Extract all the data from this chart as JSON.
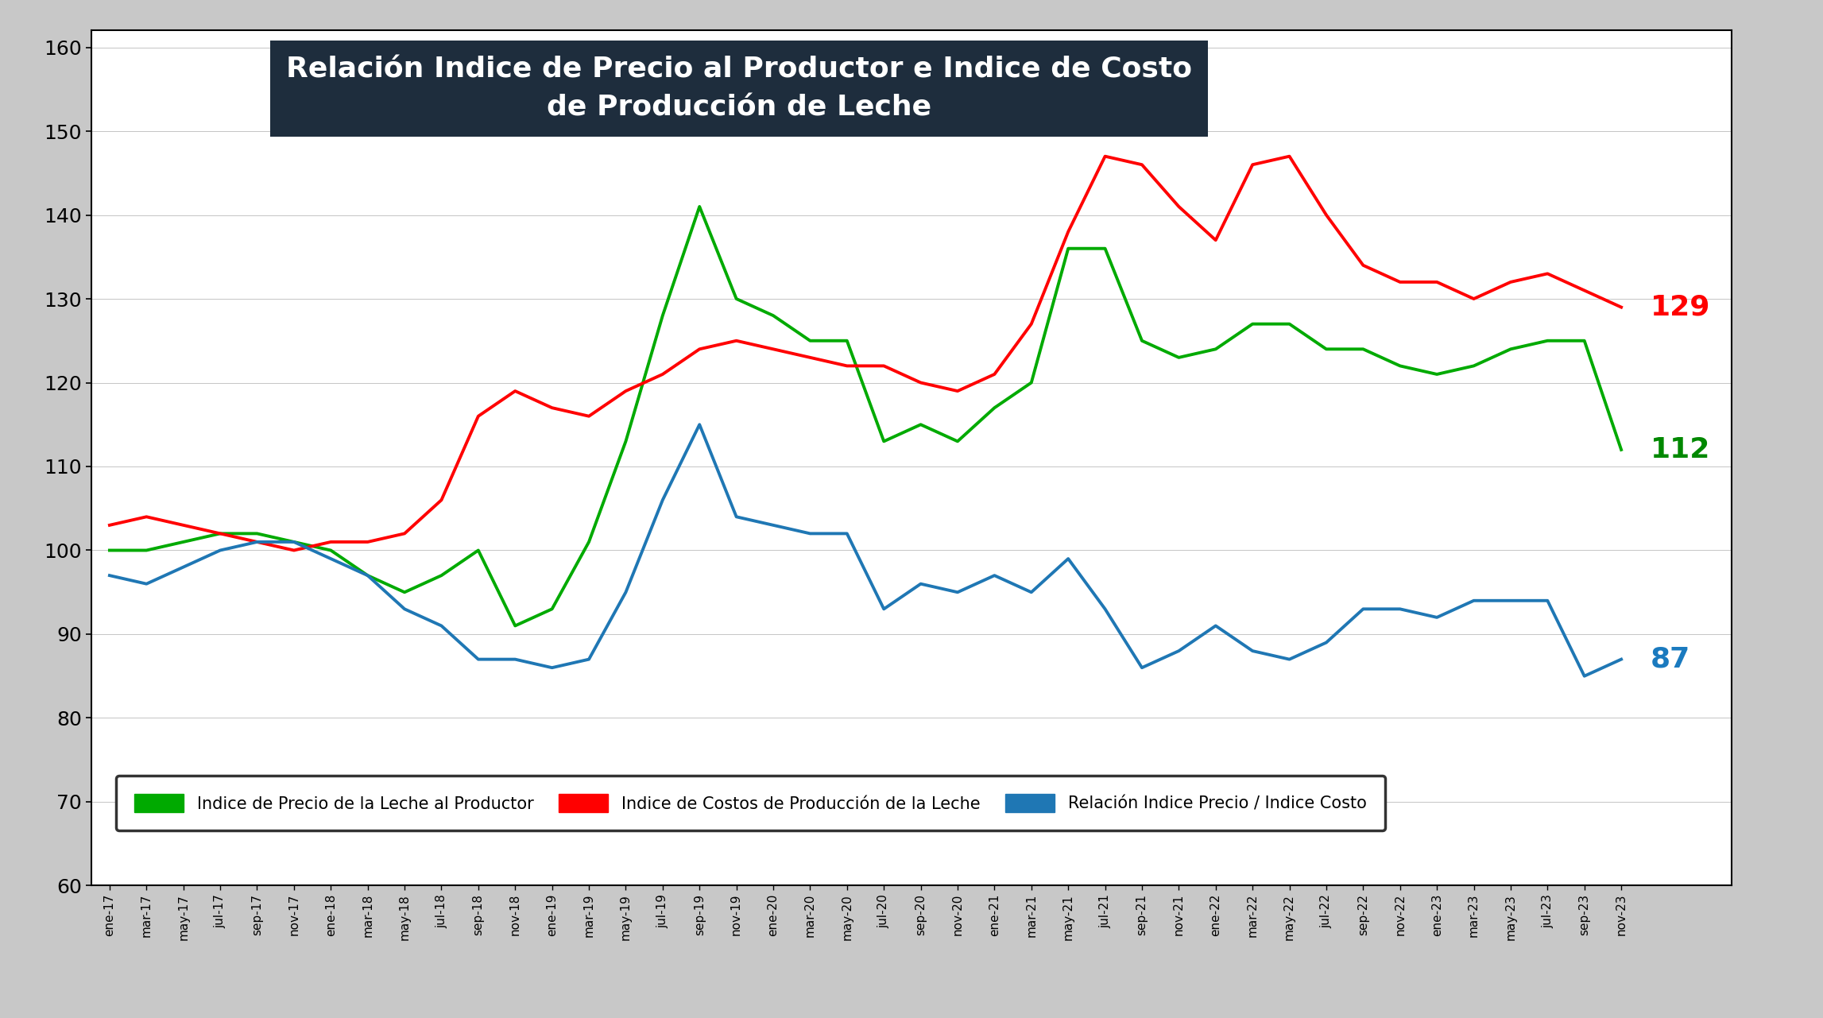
{
  "title_line1": "Relación Indice de Precio al Productor e Indice de Costo",
  "title_line2": "de Producción de Leche",
  "title_bg": "#1e2d3d",
  "title_color": "#ffffff",
  "bg_color": "#c8c8c8",
  "plot_bg": "#ffffff",
  "ylim": [
    60,
    162
  ],
  "yticks": [
    60,
    70,
    80,
    90,
    100,
    110,
    120,
    130,
    140,
    150,
    160
  ],
  "legend_labels": [
    "Indice de Precio de la Leche al Productor",
    "Indice de Costos de Producción de la Leche",
    "Relación Indice Precio / Indice Costo"
  ],
  "legend_colors": [
    "#00aa00",
    "#ff0000",
    "#1f77b4"
  ],
  "end_labels": [
    "129",
    "112",
    "87"
  ],
  "end_label_colors": [
    "#ff0000",
    "#008800",
    "#1a7abf"
  ],
  "x_labels": [
    "ene-17",
    "mar-17",
    "may-17",
    "jul-17",
    "sep-17",
    "nov-17",
    "ene-18",
    "mar-18",
    "may-18",
    "jul-18",
    "sep-18",
    "nov-18",
    "ene-19",
    "mar-19",
    "may-19",
    "jul-19",
    "sep-19",
    "nov-19",
    "ene-20",
    "mar-20",
    "may-20",
    "jul-20",
    "sep-20",
    "nov-20",
    "ene-21",
    "mar-21",
    "may-21",
    "jul-21",
    "sep-21",
    "nov-21",
    "ene-22",
    "mar-22",
    "may-22",
    "jul-22",
    "sep-22",
    "nov-22",
    "ene-23",
    "mar-23",
    "may-23",
    "jul-23",
    "sep-23",
    "nov-23"
  ],
  "green_data": [
    100,
    100,
    101,
    102,
    102,
    101,
    100,
    97,
    95,
    97,
    100,
    91,
    93,
    101,
    113,
    128,
    141,
    130,
    128,
    125,
    125,
    113,
    115,
    113,
    117,
    120,
    136,
    136,
    125,
    123,
    124,
    127,
    127,
    124,
    124,
    122,
    121,
    122,
    124,
    125,
    125,
    112
  ],
  "red_data": [
    103,
    104,
    103,
    102,
    101,
    100,
    101,
    101,
    102,
    106,
    116,
    119,
    117,
    116,
    119,
    121,
    124,
    125,
    124,
    123,
    122,
    122,
    120,
    119,
    121,
    127,
    138,
    147,
    146,
    141,
    137,
    146,
    147,
    140,
    134,
    132,
    132,
    130,
    132,
    133,
    131,
    129
  ],
  "blue_data": [
    97,
    96,
    98,
    100,
    101,
    101,
    99,
    97,
    93,
    91,
    87,
    87,
    86,
    87,
    95,
    106,
    115,
    104,
    103,
    102,
    102,
    93,
    96,
    95,
    97,
    95,
    99,
    93,
    86,
    88,
    91,
    88,
    87,
    89,
    93,
    93,
    92,
    94,
    94,
    94,
    85,
    87
  ]
}
